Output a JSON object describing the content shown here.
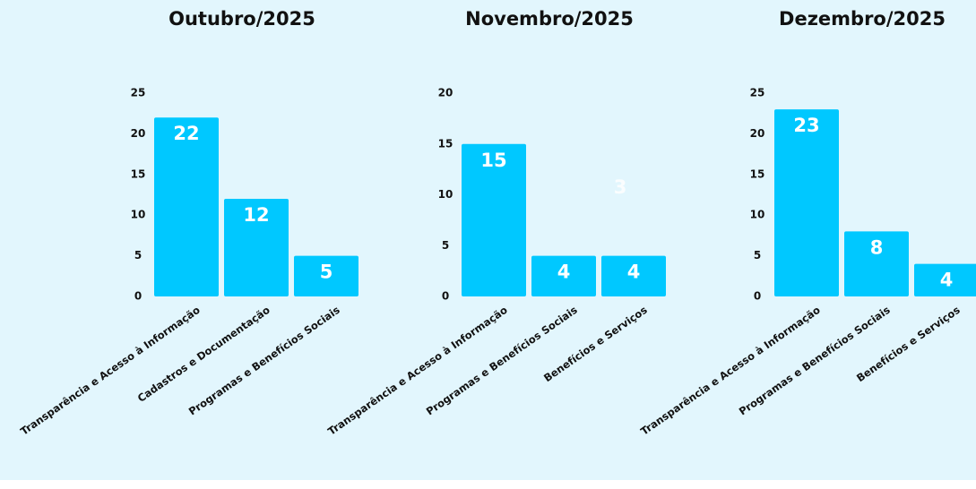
{
  "chart_data": [
    {
      "type": "bar",
      "title": "Outubro/2025",
      "categories": [
        "Transparência e Acesso à Informação",
        "Cadastros e Documentação",
        "Programas e Benefícios Sociais"
      ],
      "values": [
        22,
        12,
        5
      ],
      "color": "#00c8ff",
      "ylim": [
        0,
        25
      ],
      "yticks": [
        0,
        5,
        10,
        15,
        20,
        25
      ]
    },
    {
      "type": "bar",
      "title": "Novembro/2025",
      "categories": [
        "Transparência e Acesso à Informação",
        "Programas e Benefícios Sociais",
        "Benefícios e Serviços"
      ],
      "values": [
        15,
        4,
        4
      ],
      "color": "#00c8ff",
      "ylim": [
        0,
        20
      ],
      "yticks": [
        0,
        5,
        10,
        15,
        20
      ],
      "annotation": "3"
    },
    {
      "type": "bar",
      "title": "Dezembro/2025",
      "categories": [
        "Transparência e Acesso à Informação",
        "Programas e Benefícios Sociais",
        "Benefícios e Serviços"
      ],
      "values": [
        23,
        8,
        4
      ],
      "color": "#00c8ff",
      "ylim": [
        0,
        25
      ],
      "yticks": [
        0,
        5,
        10,
        15,
        20,
        25
      ]
    }
  ]
}
